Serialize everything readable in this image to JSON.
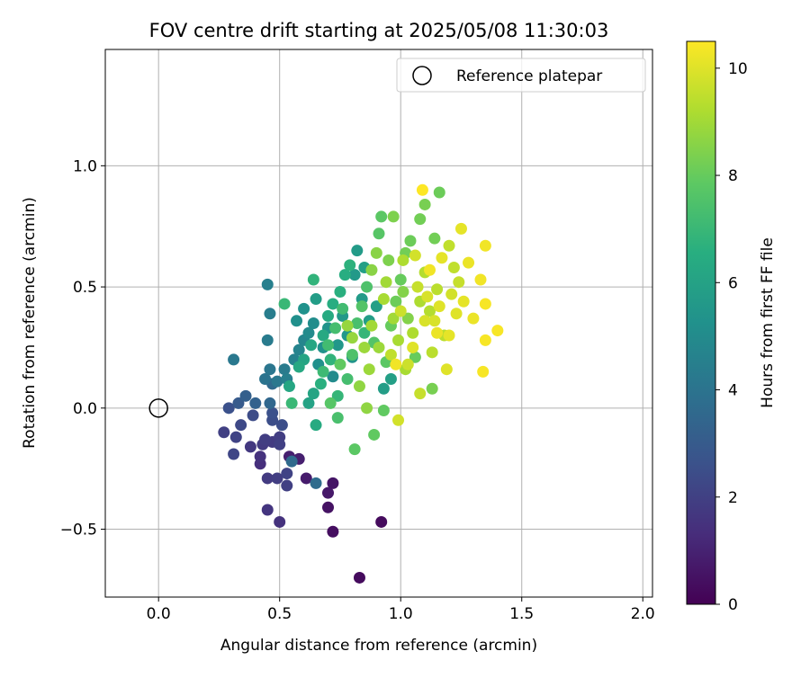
{
  "chart_data": {
    "type": "scatter",
    "title": "FOV centre drift starting at 2025/05/08 11:30:03",
    "xlabel": "Angular distance from reference (arcmin)",
    "ylabel": "Rotation from reference (arcmin)",
    "xlim": [
      -0.22,
      2.04
    ],
    "ylim": [
      -0.78,
      1.48
    ],
    "xticks": [
      0.0,
      0.5,
      1.0,
      1.5,
      2.0
    ],
    "xtick_labels": [
      "0.0",
      "0.5",
      "1.0",
      "1.5",
      "2.0"
    ],
    "yticks": [
      -0.5,
      0.0,
      0.5,
      1.0
    ],
    "ytick_labels": [
      "−0.5",
      "0.0",
      "0.5",
      "1.0"
    ],
    "grid": true,
    "legend": {
      "placement": "upper right",
      "entries": [
        "Reference platepar"
      ]
    },
    "reference_point": {
      "label": "Reference platepar",
      "x": 0.0,
      "y": 0.0
    },
    "colorbar": {
      "label": "Hours from first FF file",
      "colormap": "viridis",
      "range": [
        0,
        10.5
      ],
      "ticks": [
        0,
        2,
        4,
        6,
        8,
        10
      ],
      "tick_labels": [
        "0",
        "2",
        "4",
        "6",
        "8",
        "10"
      ]
    },
    "points": [
      {
        "x": 0.83,
        "y": -0.7,
        "h": 0.3
      },
      {
        "x": 0.92,
        "y": -0.47,
        "h": 0.3
      },
      {
        "x": 0.72,
        "y": -0.51,
        "h": 0.4
      },
      {
        "x": 0.7,
        "y": -0.41,
        "h": 0.5
      },
      {
        "x": 0.72,
        "y": -0.31,
        "h": 0.6
      },
      {
        "x": 0.7,
        "y": -0.35,
        "h": 0.7
      },
      {
        "x": 0.61,
        "y": -0.29,
        "h": 0.8
      },
      {
        "x": 0.54,
        "y": -0.2,
        "h": 0.9
      },
      {
        "x": 0.58,
        "y": -0.21,
        "h": 0.9
      },
      {
        "x": 0.5,
        "y": -0.47,
        "h": 1.5
      },
      {
        "x": 0.45,
        "y": -0.42,
        "h": 1.6
      },
      {
        "x": 0.42,
        "y": -0.23,
        "h": 1.4
      },
      {
        "x": 0.42,
        "y": -0.2,
        "h": 1.5
      },
      {
        "x": 0.45,
        "y": -0.29,
        "h": 1.8
      },
      {
        "x": 0.49,
        "y": -0.29,
        "h": 1.9
      },
      {
        "x": 0.53,
        "y": -0.32,
        "h": 2.0
      },
      {
        "x": 0.53,
        "y": -0.27,
        "h": 2.1
      },
      {
        "x": 0.38,
        "y": -0.16,
        "h": 1.7
      },
      {
        "x": 0.43,
        "y": -0.15,
        "h": 1.8
      },
      {
        "x": 0.44,
        "y": -0.13,
        "h": 1.9
      },
      {
        "x": 0.47,
        "y": -0.14,
        "h": 1.8
      },
      {
        "x": 0.5,
        "y": -0.15,
        "h": 2.0
      },
      {
        "x": 0.5,
        "y": -0.12,
        "h": 1.9
      },
      {
        "x": 0.27,
        "y": -0.1,
        "h": 2.0
      },
      {
        "x": 0.32,
        "y": -0.12,
        "h": 2.1
      },
      {
        "x": 0.31,
        "y": -0.19,
        "h": 2.2
      },
      {
        "x": 0.34,
        "y": -0.07,
        "h": 2.3
      },
      {
        "x": 0.39,
        "y": -0.03,
        "h": 2.4
      },
      {
        "x": 0.47,
        "y": -0.05,
        "h": 2.5
      },
      {
        "x": 0.51,
        "y": -0.07,
        "h": 2.5
      },
      {
        "x": 0.47,
        "y": -0.02,
        "h": 2.6
      },
      {
        "x": 0.29,
        "y": 0.0,
        "h": 2.6
      },
      {
        "x": 0.33,
        "y": 0.02,
        "h": 3.0
      },
      {
        "x": 0.36,
        "y": 0.05,
        "h": 3.2
      },
      {
        "x": 0.4,
        "y": 0.02,
        "h": 3.3
      },
      {
        "x": 0.46,
        "y": 0.02,
        "h": 3.5
      },
      {
        "x": 0.47,
        "y": 0.1,
        "h": 3.6
      },
      {
        "x": 0.55,
        "y": -0.22,
        "h": 3.6
      },
      {
        "x": 0.65,
        "y": -0.31,
        "h": 3.7
      },
      {
        "x": 0.31,
        "y": 0.2,
        "h": 4.2
      },
      {
        "x": 0.44,
        "y": 0.12,
        "h": 4.0
      },
      {
        "x": 0.46,
        "y": 0.16,
        "h": 4.1
      },
      {
        "x": 0.49,
        "y": 0.11,
        "h": 4.2
      },
      {
        "x": 0.45,
        "y": 0.28,
        "h": 4.3
      },
      {
        "x": 0.46,
        "y": 0.39,
        "h": 4.4
      },
      {
        "x": 0.45,
        "y": 0.51,
        "h": 4.5
      },
      {
        "x": 0.52,
        "y": 0.16,
        "h": 4.3
      },
      {
        "x": 0.53,
        "y": 0.12,
        "h": 4.5
      },
      {
        "x": 0.56,
        "y": 0.2,
        "h": 4.6
      },
      {
        "x": 0.58,
        "y": 0.24,
        "h": 4.7
      },
      {
        "x": 0.6,
        "y": 0.28,
        "h": 4.8
      },
      {
        "x": 0.62,
        "y": 0.31,
        "h": 5.0
      },
      {
        "x": 0.64,
        "y": 0.35,
        "h": 5.1
      },
      {
        "x": 0.57,
        "y": 0.36,
        "h": 5.2
      },
      {
        "x": 0.6,
        "y": 0.41,
        "h": 5.3
      },
      {
        "x": 0.66,
        "y": 0.18,
        "h": 5.2
      },
      {
        "x": 0.68,
        "y": 0.25,
        "h": 5.3
      },
      {
        "x": 0.7,
        "y": 0.33,
        "h": 5.4
      },
      {
        "x": 0.72,
        "y": 0.13,
        "h": 5.0
      },
      {
        "x": 0.74,
        "y": 0.26,
        "h": 5.5
      },
      {
        "x": 0.76,
        "y": 0.38,
        "h": 5.6
      },
      {
        "x": 0.78,
        "y": 0.3,
        "h": 5.5
      },
      {
        "x": 0.8,
        "y": 0.21,
        "h": 5.4
      },
      {
        "x": 0.84,
        "y": 0.45,
        "h": 5.7
      },
      {
        "x": 0.81,
        "y": 0.55,
        "h": 5.6
      },
      {
        "x": 0.82,
        "y": 0.65,
        "h": 5.7
      },
      {
        "x": 0.85,
        "y": 0.58,
        "h": 5.9
      },
      {
        "x": 0.87,
        "y": 0.36,
        "h": 5.8
      },
      {
        "x": 0.9,
        "y": 0.42,
        "h": 5.9
      },
      {
        "x": 0.93,
        "y": 0.08,
        "h": 5.8
      },
      {
        "x": 0.96,
        "y": 0.12,
        "h": 5.9
      },
      {
        "x": 0.65,
        "y": 0.45,
        "h": 5.8
      },
      {
        "x": 0.62,
        "y": 0.02,
        "h": 6.0
      },
      {
        "x": 0.64,
        "y": 0.06,
        "h": 6.1
      },
      {
        "x": 0.54,
        "y": 0.09,
        "h": 6.2
      },
      {
        "x": 0.58,
        "y": 0.17,
        "h": 6.3
      },
      {
        "x": 0.6,
        "y": 0.2,
        "h": 6.1
      },
      {
        "x": 0.63,
        "y": 0.26,
        "h": 6.2
      },
      {
        "x": 0.65,
        "y": -0.07,
        "h": 6.4
      },
      {
        "x": 0.68,
        "y": 0.3,
        "h": 6.3
      },
      {
        "x": 0.7,
        "y": 0.38,
        "h": 6.4
      },
      {
        "x": 0.72,
        "y": 0.43,
        "h": 6.5
      },
      {
        "x": 0.75,
        "y": 0.48,
        "h": 6.6
      },
      {
        "x": 0.77,
        "y": 0.55,
        "h": 6.5
      },
      {
        "x": 0.79,
        "y": 0.59,
        "h": 6.7
      },
      {
        "x": 0.64,
        "y": 0.53,
        "h": 6.8
      },
      {
        "x": 0.67,
        "y": 0.1,
        "h": 6.6
      },
      {
        "x": 0.71,
        "y": 0.2,
        "h": 6.8
      },
      {
        "x": 0.74,
        "y": 0.05,
        "h": 6.9
      },
      {
        "x": 0.85,
        "y": 0.31,
        "h": 6.9
      },
      {
        "x": 0.52,
        "y": 0.43,
        "h": 7.0
      },
      {
        "x": 0.55,
        "y": 0.02,
        "h": 7.0
      },
      {
        "x": 0.68,
        "y": 0.15,
        "h": 7.1
      },
      {
        "x": 0.7,
        "y": 0.26,
        "h": 7.2
      },
      {
        "x": 0.73,
        "y": 0.33,
        "h": 7.3
      },
      {
        "x": 0.74,
        "y": -0.04,
        "h": 7.4
      },
      {
        "x": 0.76,
        "y": 0.41,
        "h": 7.2
      },
      {
        "x": 0.78,
        "y": 0.12,
        "h": 7.3
      },
      {
        "x": 0.8,
        "y": 0.22,
        "h": 7.5
      },
      {
        "x": 0.82,
        "y": 0.35,
        "h": 7.4
      },
      {
        "x": 0.84,
        "y": 0.42,
        "h": 7.6
      },
      {
        "x": 0.86,
        "y": 0.5,
        "h": 7.5
      },
      {
        "x": 0.89,
        "y": 0.27,
        "h": 7.6
      },
      {
        "x": 0.91,
        "y": 0.72,
        "h": 7.7
      },
      {
        "x": 0.92,
        "y": 0.79,
        "h": 7.8
      },
      {
        "x": 0.81,
        "y": -0.17,
        "h": 7.8
      },
      {
        "x": 0.89,
        "y": -0.11,
        "h": 7.9
      },
      {
        "x": 0.93,
        "y": -0.01,
        "h": 7.9
      },
      {
        "x": 0.71,
        "y": 0.02,
        "h": 7.7
      },
      {
        "x": 0.75,
        "y": 0.18,
        "h": 7.9
      },
      {
        "x": 0.94,
        "y": 0.19,
        "h": 7.8
      },
      {
        "x": 0.96,
        "y": 0.34,
        "h": 8.0
      },
      {
        "x": 0.98,
        "y": 0.44,
        "h": 8.1
      },
      {
        "x": 1.0,
        "y": 0.53,
        "h": 8.0
      },
      {
        "x": 1.02,
        "y": 0.64,
        "h": 8.2
      },
      {
        "x": 1.04,
        "y": 0.69,
        "h": 8.1
      },
      {
        "x": 1.08,
        "y": 0.78,
        "h": 8.2
      },
      {
        "x": 1.1,
        "y": 0.84,
        "h": 8.3
      },
      {
        "x": 1.14,
        "y": 0.7,
        "h": 8.2
      },
      {
        "x": 1.16,
        "y": 0.89,
        "h": 8.1
      },
      {
        "x": 1.13,
        "y": 0.08,
        "h": 8.3
      },
      {
        "x": 1.06,
        "y": 0.21,
        "h": 8.0
      },
      {
        "x": 0.95,
        "y": 0.61,
        "h": 8.4
      },
      {
        "x": 0.97,
        "y": 0.79,
        "h": 8.4
      },
      {
        "x": 1.01,
        "y": 0.48,
        "h": 8.5
      },
      {
        "x": 1.03,
        "y": 0.37,
        "h": 8.5
      },
      {
        "x": 0.88,
        "y": 0.57,
        "h": 8.6
      },
      {
        "x": 0.9,
        "y": 0.64,
        "h": 8.6
      },
      {
        "x": 0.83,
        "y": 0.09,
        "h": 8.7
      },
      {
        "x": 0.86,
        "y": 0.0,
        "h": 8.7
      },
      {
        "x": 0.78,
        "y": 0.34,
        "h": 8.8
      },
      {
        "x": 0.8,
        "y": 0.29,
        "h": 8.8
      },
      {
        "x": 0.87,
        "y": 0.16,
        "h": 8.9
      },
      {
        "x": 0.91,
        "y": 0.25,
        "h": 8.9
      },
      {
        "x": 0.94,
        "y": 0.52,
        "h": 9.0
      },
      {
        "x": 0.97,
        "y": 0.37,
        "h": 9.0
      },
      {
        "x": 0.99,
        "y": 0.28,
        "h": 9.1
      },
      {
        "x": 1.02,
        "y": 0.16,
        "h": 9.1
      },
      {
        "x": 1.05,
        "y": 0.31,
        "h": 9.2
      },
      {
        "x": 1.08,
        "y": 0.44,
        "h": 9.2
      },
      {
        "x": 1.1,
        "y": 0.56,
        "h": 9.3
      },
      {
        "x": 1.12,
        "y": 0.4,
        "h": 9.3
      },
      {
        "x": 1.15,
        "y": 0.49,
        "h": 9.4
      },
      {
        "x": 1.18,
        "y": 0.3,
        "h": 9.4
      },
      {
        "x": 1.2,
        "y": 0.67,
        "h": 9.5
      },
      {
        "x": 1.22,
        "y": 0.58,
        "h": 9.5
      },
      {
        "x": 1.24,
        "y": 0.52,
        "h": 9.6
      },
      {
        "x": 1.08,
        "y": 0.06,
        "h": 9.6
      },
      {
        "x": 1.03,
        "y": 0.18,
        "h": 9.7
      },
      {
        "x": 0.99,
        "y": -0.05,
        "h": 9.8
      },
      {
        "x": 1.06,
        "y": 0.63,
        "h": 9.8
      },
      {
        "x": 1.11,
        "y": 0.46,
        "h": 9.9
      },
      {
        "x": 1.14,
        "y": 0.36,
        "h": 9.9
      },
      {
        "x": 1.19,
        "y": 0.16,
        "h": 10.0
      },
      {
        "x": 1.23,
        "y": 0.39,
        "h": 10.0
      },
      {
        "x": 1.25,
        "y": 0.74,
        "h": 10.1
      },
      {
        "x": 1.26,
        "y": 0.44,
        "h": 10.1
      },
      {
        "x": 1.28,
        "y": 0.6,
        "h": 10.2
      },
      {
        "x": 1.3,
        "y": 0.37,
        "h": 10.2
      },
      {
        "x": 1.33,
        "y": 0.53,
        "h": 10.3
      },
      {
        "x": 1.35,
        "y": 0.67,
        "h": 10.3
      },
      {
        "x": 1.35,
        "y": 0.43,
        "h": 10.4
      },
      {
        "x": 1.35,
        "y": 0.28,
        "h": 10.4
      },
      {
        "x": 1.34,
        "y": 0.15,
        "h": 10.4
      },
      {
        "x": 1.4,
        "y": 0.32,
        "h": 10.4
      },
      {
        "x": 1.09,
        "y": 0.9,
        "h": 10.5
      },
      {
        "x": 1.15,
        "y": 0.31,
        "h": 10.2
      },
      {
        "x": 1.12,
        "y": 0.57,
        "h": 10.3
      },
      {
        "x": 1.17,
        "y": 0.62,
        "h": 10.1
      },
      {
        "x": 1.05,
        "y": 0.25,
        "h": 10.0
      },
      {
        "x": 1.0,
        "y": 0.4,
        "h": 9.7
      },
      {
        "x": 0.96,
        "y": 0.22,
        "h": 9.5
      },
      {
        "x": 1.07,
        "y": 0.5,
        "h": 9.6
      },
      {
        "x": 1.13,
        "y": 0.23,
        "h": 9.4
      },
      {
        "x": 1.01,
        "y": 0.61,
        "h": 9.2
      },
      {
        "x": 0.93,
        "y": 0.45,
        "h": 9.1
      },
      {
        "x": 0.88,
        "y": 0.34,
        "h": 9.0
      },
      {
        "x": 0.85,
        "y": 0.25,
        "h": 8.9
      },
      {
        "x": 1.1,
        "y": 0.36,
        "h": 9.9
      },
      {
        "x": 1.16,
        "y": 0.42,
        "h": 10.0
      },
      {
        "x": 1.2,
        "y": 0.3,
        "h": 10.1
      },
      {
        "x": 0.98,
        "y": 0.18,
        "h": 10.3
      },
      {
        "x": 1.21,
        "y": 0.47,
        "h": 9.8
      }
    ]
  }
}
